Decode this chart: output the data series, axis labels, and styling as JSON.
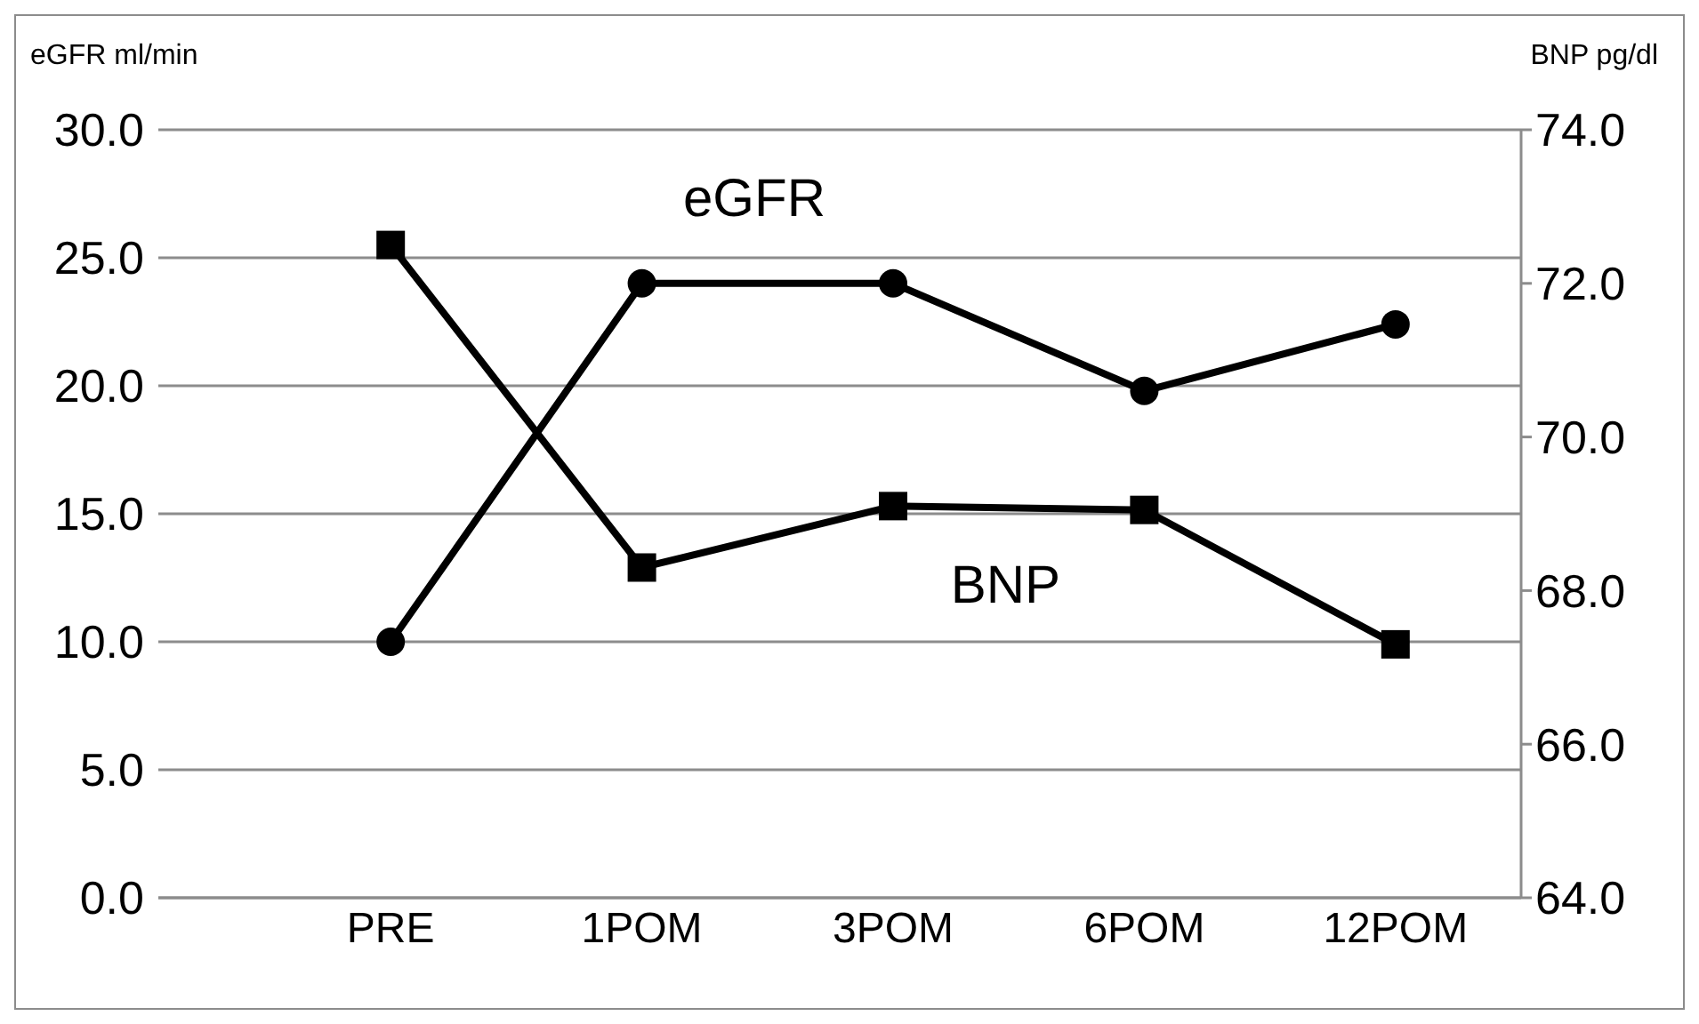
{
  "chart_data": {
    "type": "line",
    "xlabel": null,
    "ylabel": "eGFR ml/min",
    "y2label": "BNP pg/dl",
    "categories": [
      "PRE",
      "1POM",
      "3POM",
      "6POM",
      "12POM"
    ],
    "series": [
      {
        "name": "eGFR",
        "color": "#000000",
        "marker": "circle",
        "values": [
          10,
          24,
          24,
          19.8,
          22.4
        ]
      },
      {
        "name": "BNP",
        "color": "#000000",
        "marker": "square",
        "axis": "y2",
        "values": [
          72.5,
          68.3,
          69.1,
          69.05,
          67.3
        ]
      }
    ],
    "ylim": [
      0,
      30
    ],
    "yticks": [
      {
        "value": 0,
        "label": "0.0"
      },
      {
        "value": 5,
        "label": "5.0"
      },
      {
        "value": 10,
        "label": "10.0"
      },
      {
        "value": 15,
        "label": "15.0"
      },
      {
        "value": 20,
        "label": "20.0"
      },
      {
        "value": 25,
        "label": "25.0"
      },
      {
        "value": 30,
        "label": "30.0"
      }
    ],
    "y2lim": [
      64,
      74
    ],
    "y2ticks": [
      {
        "value": 64,
        "label": "64.0"
      },
      {
        "value": 66,
        "label": "66.0"
      },
      {
        "value": 68,
        "label": "68.0"
      },
      {
        "value": 70,
        "label": "70.0"
      },
      {
        "value": 72,
        "label": "72.0"
      },
      {
        "value": 74,
        "label": "74.0"
      }
    ],
    "grid": "y",
    "legend": false
  }
}
